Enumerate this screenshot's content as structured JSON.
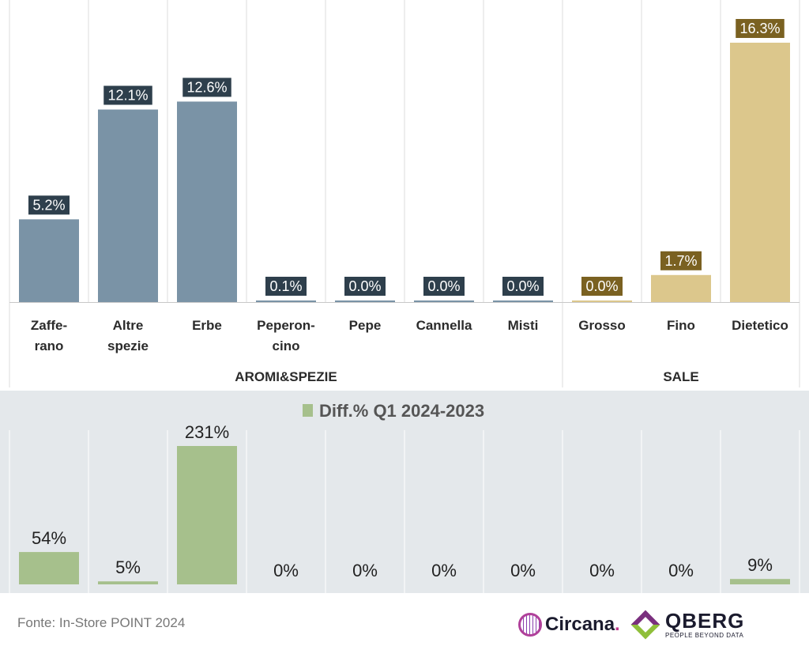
{
  "chart_data": [
    {
      "type": "bar",
      "categories": [
        "Zaffe-\nrano",
        "Altre\nspezie",
        "Erbe",
        "Peperon-\ncino",
        "Pepe",
        "Cannella",
        "Misti",
        "Grosso",
        "Fino",
        "Dietetico"
      ],
      "values": [
        5.2,
        12.1,
        12.6,
        0.1,
        0.0,
        0.0,
        0.0,
        0.0,
        1.7,
        16.3
      ],
      "data_labels": [
        "5.2%",
        "12.1%",
        "12.6%",
        "0.1%",
        "0.0%",
        "0.0%",
        "0.0%",
        "0.0%",
        "1.7%",
        "16.3%"
      ],
      "groups": [
        {
          "label": "AROMI&SPEZIE",
          "count": 7,
          "color": "#7a93a6",
          "label_bg": "#2e3f4c"
        },
        {
          "label": "SALE",
          "count": 3,
          "color": "#dcc78c",
          "label_bg": "#7a6121"
        }
      ],
      "ylim": [
        0,
        16.3
      ],
      "grid": "vertical separators"
    },
    {
      "type": "bar",
      "legend": "Diff.% Q1 2024-2023",
      "legend_position": "top-center",
      "values": [
        54,
        5,
        231,
        0,
        0,
        0,
        0,
        0,
        0,
        9
      ],
      "data_labels": [
        "54%",
        "5%",
        "231%",
        "0%",
        "0%",
        "0%",
        "0%",
        "0%",
        "0%",
        "9%"
      ],
      "color": "#a6c08c",
      "ylim": [
        0,
        231
      ]
    }
  ],
  "footer": {
    "source": "Fonte: In-Store POINT 2024"
  },
  "logos": {
    "circana_word": "Circana",
    "circana_dot": ".",
    "qberg_word": "QBERG",
    "qberg_tag": "PEOPLE BEYOND DATA"
  },
  "colors": {
    "panel_bg": "#e4e8eb",
    "grid": "#dddddd"
  }
}
